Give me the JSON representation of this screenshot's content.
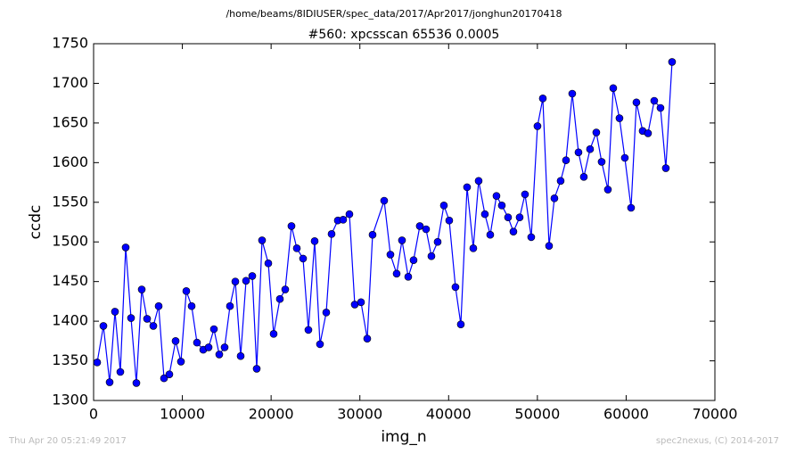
{
  "chart_data": {
    "type": "line",
    "suptitle": "/home/beams/8IDIUSER/spec_data/2017/Apr2017/jonghun20170418",
    "title": "#560: xpcsscan 65536 0.0005",
    "xlabel": "img_n",
    "ylabel": "ccdc",
    "footer_left": "Thu Apr 20 05:21:49 2017",
    "footer_right": "spec2nexus, (C) 2014-2017",
    "xlim": [
      0,
      70000
    ],
    "xticks": [
      0,
      10000,
      20000,
      30000,
      40000,
      50000,
      60000,
      70000
    ],
    "ylim": [
      1300,
      1750
    ],
    "yticks": [
      1300,
      1350,
      1400,
      1450,
      1500,
      1550,
      1600,
      1650,
      1700,
      1750
    ],
    "x": [
      402,
      1105,
      1808,
      2410,
      3013,
      3615,
      4218,
      4820,
      5423,
      6026,
      6729,
      7331,
      7934,
      8536,
      9239,
      9842,
      10444,
      11047,
      11649,
      12352,
      12955,
      13557,
      14160,
      14762,
      15365,
      15968,
      16570,
      17173,
      17876,
      18378,
      18980,
      19684,
      20286,
      20989,
      21591,
      22294,
      22897,
      23600,
      24202,
      24905,
      25508,
      26211,
      26813,
      27516,
      28118,
      28821,
      29424,
      30127,
      30830,
      31432,
      32738,
      33441,
      34144,
      34746,
      35449,
      36051,
      36754,
      37457,
      38060,
      38763,
      39466,
      40068,
      40771,
      41374,
      42077,
      42780,
      43382,
      44085,
      44688,
      45391,
      45993,
      46696,
      47299,
      48002,
      48604,
      49307,
      50010,
      50613,
      51316,
      51918,
      52621,
      53224,
      53927,
      54630,
      55232,
      55935,
      56638,
      57241,
      57944,
      58546,
      59249,
      59852,
      60555,
      61157,
      61860,
      62463,
      63166,
      63869,
      64471,
      65174
    ],
    "series": [
      {
        "name": "ccdc",
        "color": "#0000ff",
        "values": [
          1348,
          1394,
          1323,
          1412,
          1336,
          1493,
          1404,
          1322,
          1440,
          1403,
          1394,
          1419,
          1328,
          1333,
          1375,
          1349,
          1438,
          1419,
          1373,
          1364,
          1367,
          1390,
          1358,
          1367,
          1419,
          1450,
          1356,
          1451,
          1457,
          1340,
          1502,
          1473,
          1384,
          1428,
          1440,
          1520,
          1492,
          1479,
          1389,
          1501,
          1371,
          1411,
          1510,
          1527,
          1528,
          1535,
          1421,
          1424,
          1378,
          1509,
          1552,
          1484,
          1460,
          1502,
          1456,
          1477,
          1520,
          1516,
          1482,
          1500,
          1546,
          1527,
          1443,
          1396,
          1569,
          1492,
          1577,
          1535,
          1509,
          1558,
          1546,
          1531,
          1513,
          1531,
          1560,
          1506,
          1646,
          1681,
          1495,
          1555,
          1577,
          1603,
          1687,
          1613,
          1582,
          1617,
          1638,
          1601,
          1566,
          1694,
          1656,
          1606,
          1543,
          1676,
          1640,
          1637,
          1678,
          1669,
          1593,
          1727
        ]
      }
    ]
  }
}
